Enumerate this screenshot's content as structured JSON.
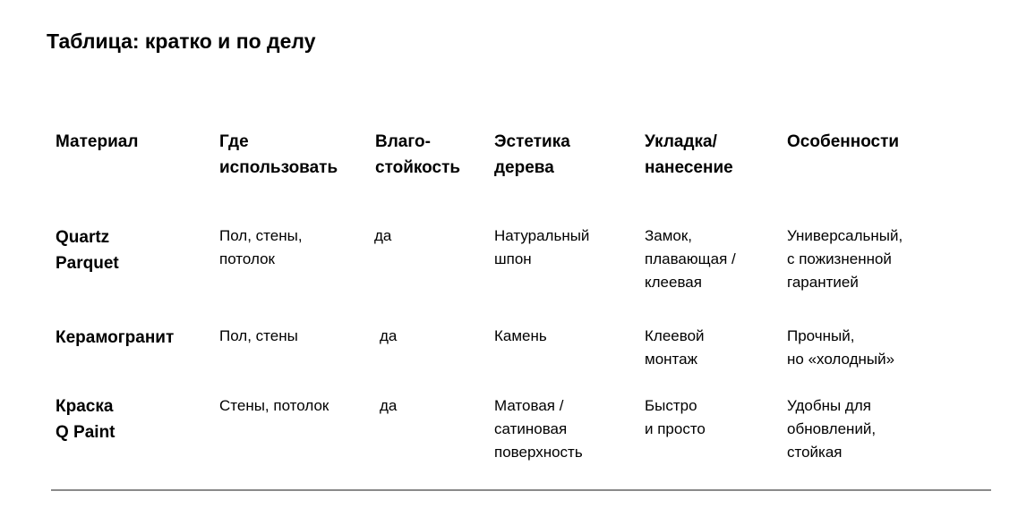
{
  "title": "Таблица: кратко и по делу",
  "columns": [
    "Материал",
    "Где\nиспользовать",
    "Влаго-\nстойкость",
    "Эстетика\nдерева",
    "Укладка/\nнанесение",
    "Особенности"
  ],
  "rows": [
    {
      "material": "Quartz\nParquet",
      "where": "Пол, стены,\nпотолок",
      "moisture": "да",
      "aesthetics": "Натуральный\nшпон",
      "install": "Замок,\nплавающая /\nклеевая",
      "features": "Универсальный,\nс пожизненной\nгарантией"
    },
    {
      "material": "Керамогранит",
      "where": "Пол, стены",
      "moisture": "да",
      "aesthetics": "Камень",
      "install": "Клеевой\nмонтаж",
      "features": "Прочный,\nно «холодный»"
    },
    {
      "material": "Краска\nQ Paint",
      "where": "Стены, потолок",
      "moisture": "да",
      "aesthetics": "Матовая /\nсатиновая\nповерхность",
      "install": "Быстро\nи просто",
      "features": "Удобны для\nобновлений,\nстойкая"
    }
  ]
}
